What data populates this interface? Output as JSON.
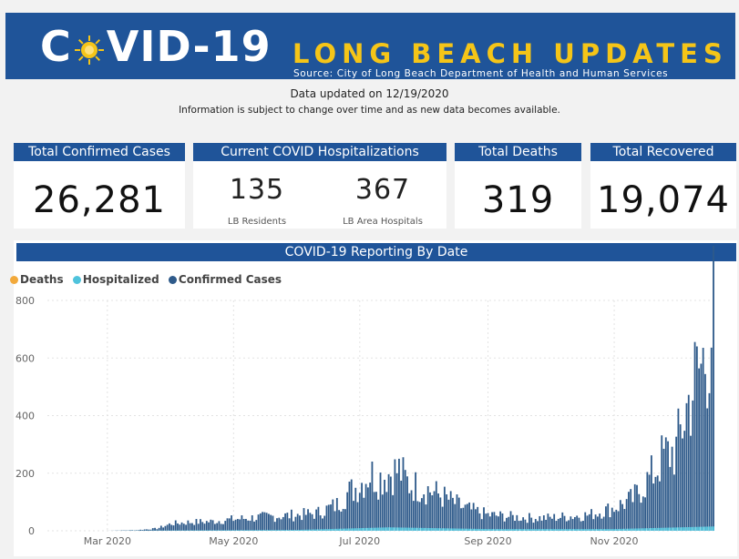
{
  "banner": {
    "covid_left": "C",
    "covid_right": "VID-19",
    "title": "LONG BEACH UPDATES",
    "source": "Source: City of Long Beach Department of Health and Human Services",
    "colors": {
      "banner_bg": "#1f5499",
      "accent": "#f5c518"
    },
    "icon": "sun-icon"
  },
  "status": {
    "updated": "Data updated on 12/19/2020",
    "note": "Information is subject to change over time and as new data becomes available."
  },
  "cards": {
    "confirmed": {
      "label": "Total Confirmed Cases",
      "value": "26,281"
    },
    "hospitalizations": {
      "label": "Current COVID Hospitalizations",
      "residents_value": "135",
      "residents_label": "LB Residents",
      "area_value": "367",
      "area_label": "LB Area Hospitals"
    },
    "deaths": {
      "label": "Total Deaths",
      "value": "319"
    },
    "recovered": {
      "label": "Total Recovered",
      "value": "19,074"
    }
  },
  "chart_data": {
    "type": "bar",
    "title": "COVID-19 Reporting By Date",
    "legend": [
      {
        "name": "Deaths",
        "color": "#f2a93b"
      },
      {
        "name": "Hospitalized",
        "color": "#4fc3dc"
      },
      {
        "name": "Confirmed Cases",
        "color": "#2e5a8a"
      }
    ],
    "legend_position": "top-left",
    "ylim": [
      0,
      800
    ],
    "yticks": [
      "0",
      "200",
      "400",
      "600",
      "800"
    ],
    "xtick_labels": [
      "Mar 2020",
      "May 2020",
      "Jul 2020",
      "Sep 2020",
      "Nov 2020"
    ],
    "xtick_dates": [
      "2020-03-01",
      "2020-05-01",
      "2020-07-01",
      "2020-09-01",
      "2020-11-01"
    ],
    "x_range": [
      "2020-02-01",
      "2020-12-19"
    ],
    "grid": true,
    "series": [
      {
        "name": "Confirmed Cases",
        "color": "#2e5a8a",
        "points": [
          [
            "2020-03-01",
            0
          ],
          [
            "2020-03-15",
            2
          ],
          [
            "2020-03-25",
            8
          ],
          [
            "2020-04-01",
            25
          ],
          [
            "2020-04-10",
            30
          ],
          [
            "2020-04-20",
            32
          ],
          [
            "2020-05-01",
            40
          ],
          [
            "2020-05-10",
            45
          ],
          [
            "2020-05-20",
            50
          ],
          [
            "2020-06-01",
            55
          ],
          [
            "2020-06-10",
            60
          ],
          [
            "2020-06-20",
            90
          ],
          [
            "2020-06-25",
            130
          ],
          [
            "2020-07-01",
            160
          ],
          [
            "2020-07-06",
            200
          ],
          [
            "2020-07-10",
            180
          ],
          [
            "2020-07-15",
            200
          ],
          [
            "2020-07-20",
            210
          ],
          [
            "2020-07-25",
            160
          ],
          [
            "2020-08-01",
            150
          ],
          [
            "2020-08-10",
            120
          ],
          [
            "2020-08-20",
            80
          ],
          [
            "2020-09-01",
            55
          ],
          [
            "2020-09-10",
            50
          ],
          [
            "2020-09-20",
            45
          ],
          [
            "2020-10-01",
            45
          ],
          [
            "2020-10-10",
            50
          ],
          [
            "2020-10-20",
            55
          ],
          [
            "2020-11-01",
            80
          ],
          [
            "2020-11-10",
            110
          ],
          [
            "2020-11-20",
            200
          ],
          [
            "2020-11-25",
            260
          ],
          [
            "2020-12-01",
            280
          ],
          [
            "2020-12-05",
            400
          ],
          [
            "2020-12-10",
            520
          ],
          [
            "2020-12-15",
            600
          ],
          [
            "2020-12-19",
            740
          ]
        ]
      },
      {
        "name": "Hospitalized",
        "color": "#4fc3dc",
        "points": [
          [
            "2020-03-01",
            0
          ],
          [
            "2020-06-01",
            3
          ],
          [
            "2020-07-15",
            12
          ],
          [
            "2020-09-01",
            6
          ],
          [
            "2020-11-01",
            6
          ],
          [
            "2020-12-19",
            15
          ]
        ]
      },
      {
        "name": "Deaths",
        "color": "#f2a93b",
        "points": [
          [
            "2020-03-01",
            0
          ],
          [
            "2020-12-19",
            1
          ]
        ]
      }
    ]
  }
}
